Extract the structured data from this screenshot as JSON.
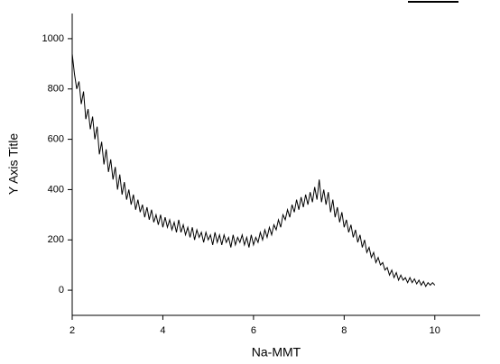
{
  "chart_data": {
    "type": "line",
    "x_label": "Na-MMT",
    "y_label": "Y Axis Title",
    "x": [
      2.0,
      2.05,
      2.1,
      2.15,
      2.2,
      2.25,
      2.3,
      2.35,
      2.4,
      2.45,
      2.5,
      2.55,
      2.6,
      2.65,
      2.7,
      2.75,
      2.8,
      2.85,
      2.9,
      2.95,
      3.0,
      3.05,
      3.1,
      3.15,
      3.2,
      3.25,
      3.3,
      3.35,
      3.4,
      3.45,
      3.5,
      3.55,
      3.6,
      3.65,
      3.7,
      3.75,
      3.8,
      3.85,
      3.9,
      3.95,
      4.0,
      4.05,
      4.1,
      4.15,
      4.2,
      4.25,
      4.3,
      4.35,
      4.4,
      4.45,
      4.5,
      4.55,
      4.6,
      4.65,
      4.7,
      4.75,
      4.8,
      4.85,
      4.9,
      4.95,
      5.0,
      5.05,
      5.1,
      5.15,
      5.2,
      5.25,
      5.3,
      5.35,
      5.4,
      5.45,
      5.5,
      5.55,
      5.6,
      5.65,
      5.7,
      5.75,
      5.8,
      5.85,
      5.9,
      5.95,
      6.0,
      6.05,
      6.1,
      6.15,
      6.2,
      6.25,
      6.3,
      6.35,
      6.4,
      6.45,
      6.5,
      6.55,
      6.6,
      6.65,
      6.7,
      6.75,
      6.8,
      6.85,
      6.9,
      6.95,
      7.0,
      7.05,
      7.1,
      7.15,
      7.2,
      7.25,
      7.3,
      7.35,
      7.4,
      7.45,
      7.5,
      7.55,
      7.6,
      7.65,
      7.7,
      7.75,
      7.8,
      7.85,
      7.9,
      7.95,
      8.0,
      8.05,
      8.1,
      8.15,
      8.2,
      8.25,
      8.3,
      8.35,
      8.4,
      8.45,
      8.5,
      8.55,
      8.6,
      8.65,
      8.7,
      8.75,
      8.8,
      8.85,
      8.9,
      8.95,
      9.0,
      9.05,
      9.1,
      9.15,
      9.2,
      9.25,
      9.3,
      9.35,
      9.4,
      9.45,
      9.5,
      9.55,
      9.6,
      9.65,
      9.7,
      9.75,
      9.8,
      9.85,
      9.9,
      9.95,
      10.0
    ],
    "values": [
      940,
      860,
      800,
      830,
      740,
      790,
      680,
      720,
      640,
      690,
      600,
      650,
      540,
      590,
      500,
      560,
      470,
      520,
      440,
      490,
      400,
      460,
      380,
      430,
      360,
      400,
      340,
      380,
      320,
      360,
      310,
      340,
      290,
      330,
      280,
      320,
      270,
      300,
      260,
      300,
      250,
      290,
      250,
      280,
      240,
      270,
      230,
      280,
      230,
      260,
      220,
      250,
      210,
      250,
      200,
      240,
      210,
      230,
      190,
      230,
      200,
      220,
      180,
      230,
      190,
      220,
      180,
      220,
      190,
      210,
      170,
      220,
      180,
      210,
      190,
      220,
      180,
      210,
      170,
      220,
      180,
      210,
      190,
      230,
      200,
      240,
      210,
      250,
      220,
      260,
      240,
      280,
      250,
      300,
      280,
      320,
      290,
      340,
      310,
      360,
      320,
      370,
      330,
      380,
      340,
      390,
      350,
      410,
      360,
      440,
      350,
      400,
      340,
      390,
      310,
      360,
      290,
      330,
      270,
      310,
      250,
      280,
      230,
      260,
      210,
      240,
      190,
      220,
      170,
      200,
      150,
      170,
      130,
      150,
      110,
      130,
      100,
      110,
      80,
      90,
      60,
      80,
      50,
      70,
      40,
      60,
      40,
      50,
      30,
      50,
      30,
      45,
      25,
      40,
      20,
      35,
      15,
      30,
      20,
      30,
      20
    ],
    "color": "#000000",
    "xlim": [
      2,
      11
    ],
    "xticks": [
      2,
      4,
      6,
      8,
      10
    ],
    "ylim": [
      -100,
      1100
    ],
    "yticks": [
      0,
      200,
      400,
      600,
      800,
      1000
    ]
  }
}
